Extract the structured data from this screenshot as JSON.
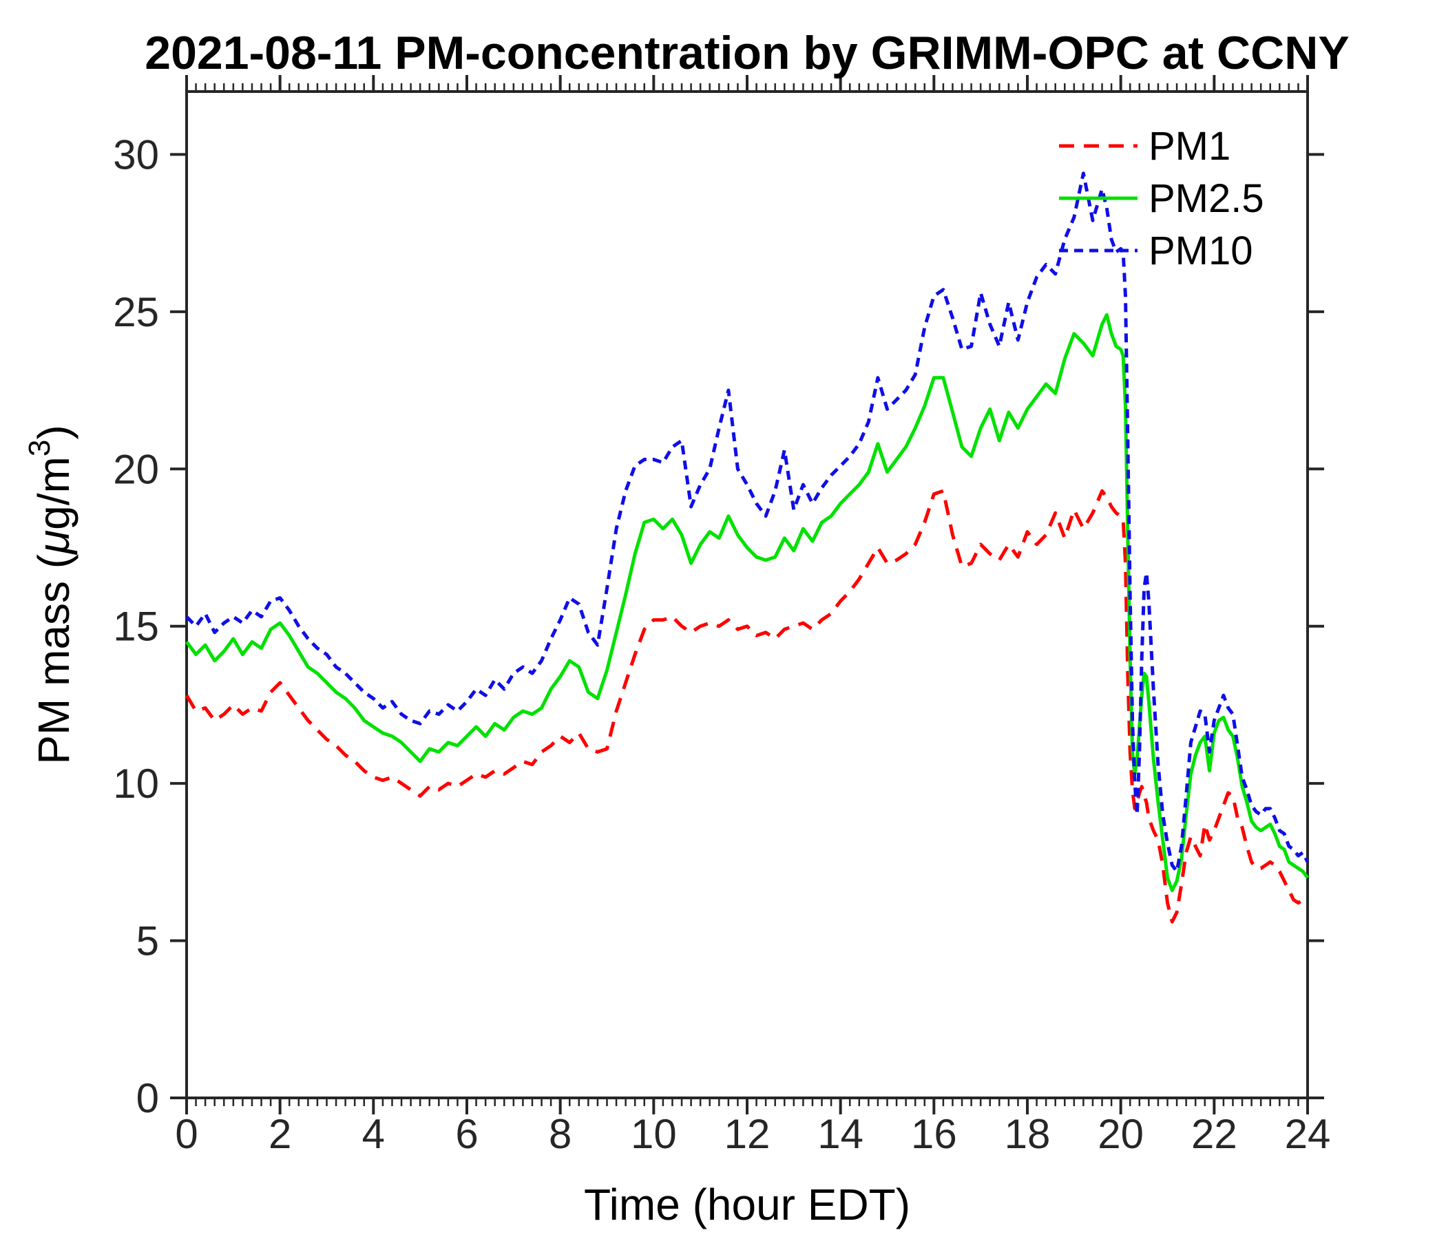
{
  "chart": {
    "title": "2021-08-11 PM-concentration by GRIMM-OPC at CCNY",
    "xlabel": "Time (hour EDT)",
    "ylabel_parts": {
      "prefix": "PM mass (",
      "mu": "μ",
      "mid": "g/m",
      "sup": "3",
      "suffix": ")"
    }
  },
  "colors": {
    "axis": "#262626",
    "background": "#ffffff"
  },
  "chart_data": {
    "type": "line",
    "title": "2021-08-11 PM-concentration by GRIMM-OPC at CCNY",
    "xlabel": "Time (hour EDT)",
    "ylabel": "PM mass (μg/m³)",
    "xlim": [
      0,
      24
    ],
    "ylim": [
      0,
      32
    ],
    "xticks": [
      0,
      2,
      4,
      6,
      8,
      10,
      12,
      14,
      16,
      18,
      20,
      22,
      24
    ],
    "yticks": [
      0,
      5,
      10,
      15,
      20,
      25,
      30
    ],
    "x_minor_step": 0.2,
    "grid": false,
    "legend_position": "top-right",
    "x": [
      0,
      0.2,
      0.4,
      0.6,
      0.8,
      1,
      1.2,
      1.4,
      1.6,
      1.8,
      2,
      2.2,
      2.4,
      2.6,
      2.8,
      3,
      3.2,
      3.4,
      3.6,
      3.8,
      4,
      4.2,
      4.4,
      4.6,
      4.8,
      5,
      5.2,
      5.4,
      5.6,
      5.8,
      6,
      6.2,
      6.4,
      6.6,
      6.8,
      7,
      7.2,
      7.4,
      7.6,
      7.8,
      8,
      8.2,
      8.4,
      8.6,
      8.8,
      9,
      9.2,
      9.4,
      9.6,
      9.8,
      10,
      10.2,
      10.4,
      10.6,
      10.8,
      11,
      11.2,
      11.4,
      11.6,
      11.8,
      12,
      12.2,
      12.4,
      12.6,
      12.8,
      13,
      13.2,
      13.4,
      13.6,
      13.8,
      14,
      14.2,
      14.4,
      14.6,
      14.8,
      15,
      15.2,
      15.4,
      15.6,
      15.8,
      16,
      16.2,
      16.4,
      16.6,
      16.8,
      17,
      17.2,
      17.4,
      17.6,
      17.8,
      18,
      18.2,
      18.4,
      18.6,
      18.8,
      19,
      19.2,
      19.4,
      19.6,
      19.7,
      19.8,
      19.9,
      20,
      20.05,
      20.1,
      20.15,
      20.2,
      20.25,
      20.3,
      20.35,
      20.4,
      20.45,
      20.5,
      20.55,
      20.6,
      20.7,
      20.8,
      20.9,
      21,
      21.1,
      21.2,
      21.3,
      21.4,
      21.5,
      21.6,
      21.7,
      21.8,
      21.9,
      22,
      22.1,
      22.2,
      22.3,
      22.4,
      22.5,
      22.6,
      22.7,
      22.8,
      22.9,
      23,
      23.1,
      23.2,
      23.3,
      23.4,
      23.5,
      23.6,
      23.7,
      23.8,
      23.9,
      24
    ],
    "series": [
      {
        "name": "PM1",
        "color": "#ff0000",
        "style": "dashed",
        "dash": "22 14",
        "values": [
          12.8,
          12.3,
          12.4,
          12.0,
          12.2,
          12.5,
          12.2,
          12.4,
          12.3,
          12.9,
          13.2,
          12.8,
          12.4,
          12.0,
          11.7,
          11.4,
          11.2,
          10.9,
          10.7,
          10.4,
          10.2,
          10.1,
          10.2,
          10.0,
          9.8,
          9.6,
          9.9,
          9.8,
          10.0,
          9.9,
          10.1,
          10.3,
          10.2,
          10.4,
          10.3,
          10.5,
          10.7,
          10.6,
          11.0,
          11.2,
          11.5,
          11.3,
          11.6,
          11.1,
          11.0,
          11.1,
          12.3,
          13.2,
          14.1,
          14.9,
          15.2,
          15.2,
          15.3,
          15.0,
          14.8,
          15.0,
          15.1,
          15.0,
          15.2,
          14.9,
          15.0,
          14.7,
          14.8,
          14.6,
          14.9,
          15.0,
          15.1,
          14.9,
          15.2,
          15.4,
          15.8,
          16.1,
          16.5,
          17.0,
          17.5,
          17.0,
          17.1,
          17.3,
          17.6,
          18.3,
          19.2,
          19.3,
          17.9,
          16.9,
          17.0,
          17.6,
          17.3,
          17.1,
          17.6,
          17.2,
          18.0,
          17.6,
          17.9,
          18.6,
          17.8,
          18.7,
          18.1,
          18.6,
          19.3,
          19.1,
          18.8,
          18.6,
          18.5,
          18.4,
          17.0,
          13.5,
          11.0,
          9.8,
          9.2,
          9.4,
          9.7,
          9.9,
          9.6,
          9.4,
          8.9,
          8.5,
          8.2,
          7.4,
          6.2,
          5.6,
          5.9,
          6.8,
          7.8,
          8.3,
          8.0,
          7.7,
          8.7,
          8.2,
          8.5,
          8.9,
          9.3,
          9.7,
          9.6,
          8.9,
          8.6,
          8.0,
          7.5,
          7.3,
          7.3,
          7.4,
          7.5,
          7.4,
          7.2,
          6.9,
          6.6,
          6.3,
          6.2,
          6.3,
          6.2
        ]
      },
      {
        "name": "PM2.5",
        "color": "#00e100",
        "style": "solid",
        "dash": "",
        "values": [
          14.5,
          14.1,
          14.4,
          13.9,
          14.2,
          14.6,
          14.1,
          14.5,
          14.3,
          14.9,
          15.1,
          14.7,
          14.2,
          13.7,
          13.5,
          13.2,
          12.9,
          12.7,
          12.4,
          12.0,
          11.8,
          11.6,
          11.5,
          11.3,
          11.0,
          10.7,
          11.1,
          11.0,
          11.3,
          11.2,
          11.5,
          11.8,
          11.5,
          11.9,
          11.7,
          12.1,
          12.3,
          12.2,
          12.4,
          13.0,
          13.4,
          13.9,
          13.7,
          12.9,
          12.7,
          13.6,
          14.8,
          16.0,
          17.3,
          18.3,
          18.4,
          18.1,
          18.4,
          17.9,
          17.0,
          17.6,
          18.0,
          17.8,
          18.5,
          17.9,
          17.5,
          17.2,
          17.1,
          17.2,
          17.8,
          17.4,
          18.1,
          17.7,
          18.3,
          18.5,
          18.9,
          19.2,
          19.5,
          19.9,
          20.8,
          19.9,
          20.3,
          20.7,
          21.3,
          22.0,
          22.9,
          22.9,
          21.8,
          20.7,
          20.4,
          21.3,
          21.9,
          20.9,
          21.8,
          21.3,
          21.9,
          22.3,
          22.7,
          22.4,
          23.5,
          24.3,
          24.0,
          23.6,
          24.6,
          24.9,
          24.3,
          23.9,
          23.8,
          23.6,
          22.0,
          18.0,
          14.0,
          11.0,
          10.3,
          10.8,
          11.8,
          12.8,
          13.5,
          13.4,
          12.6,
          10.8,
          9.4,
          8.2,
          7.0,
          6.6,
          6.9,
          7.6,
          9.0,
          10.3,
          10.9,
          11.3,
          11.5,
          10.4,
          11.6,
          12.0,
          12.1,
          11.7,
          11.5,
          10.8,
          9.9,
          9.4,
          8.8,
          8.6,
          8.5,
          8.6,
          8.7,
          8.4,
          8.0,
          7.9,
          7.5,
          7.4,
          7.3,
          7.2,
          7.0
        ]
      },
      {
        "name": "PM10",
        "color": "#0f0fe6",
        "style": "dashed",
        "dash": "13 9",
        "values": [
          15.3,
          15.0,
          15.4,
          14.8,
          15.1,
          15.3,
          15.1,
          15.5,
          15.3,
          15.8,
          15.9,
          15.5,
          15.0,
          14.6,
          14.3,
          14.1,
          13.7,
          13.5,
          13.2,
          12.9,
          12.7,
          12.4,
          12.6,
          12.2,
          12.0,
          11.9,
          12.3,
          12.2,
          12.5,
          12.3,
          12.6,
          13.0,
          12.8,
          13.3,
          13.0,
          13.5,
          13.7,
          13.5,
          13.9,
          14.6,
          15.2,
          15.9,
          15.7,
          14.8,
          14.4,
          16.2,
          18.1,
          19.3,
          20.1,
          20.3,
          20.3,
          20.2,
          20.7,
          20.9,
          18.8,
          19.5,
          20.0,
          21.3,
          22.5,
          20.0,
          19.5,
          18.9,
          18.5,
          19.3,
          20.6,
          18.7,
          19.5,
          18.9,
          19.4,
          19.8,
          20.1,
          20.4,
          20.8,
          21.5,
          22.9,
          21.9,
          22.2,
          22.5,
          23.0,
          24.5,
          25.5,
          25.7,
          24.8,
          23.8,
          23.9,
          25.6,
          24.6,
          23.9,
          25.3,
          24.1,
          25.3,
          26.1,
          26.5,
          26.2,
          27.3,
          28.0,
          29.4,
          27.9,
          28.9,
          28.3,
          27.3,
          26.9,
          27.0,
          26.9,
          25.5,
          21.0,
          16.0,
          12.0,
          10.0,
          9.0,
          11.0,
          14.0,
          16.2,
          16.7,
          15.8,
          13.0,
          10.6,
          9.0,
          8.1,
          7.4,
          7.2,
          8.0,
          9.6,
          11.3,
          11.8,
          12.3,
          12.2,
          11.0,
          12.0,
          12.4,
          12.8,
          12.4,
          12.2,
          11.2,
          10.2,
          9.8,
          9.3,
          9.1,
          9.0,
          9.2,
          9.2,
          8.9,
          8.5,
          8.4,
          8.0,
          7.9,
          7.7,
          7.8,
          7.5
        ]
      }
    ]
  }
}
